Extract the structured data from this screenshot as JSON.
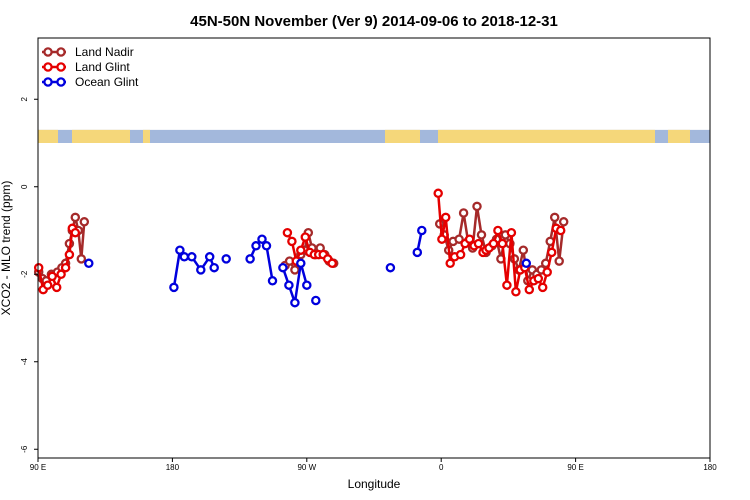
{
  "chart_data": {
    "type": "line",
    "title": "45N-50N November (Ver 9)   2014-09-06 to 2018-12-31",
    "xlabel": "Longitude",
    "ylabel": "XCO2 - MLO trend (ppm)",
    "xlim": [
      90,
      450
    ],
    "ylim": [
      -6.2,
      3.4
    ],
    "x_ticks": [
      {
        "value": 90,
        "label": "90 E"
      },
      {
        "value": 180,
        "label": "180"
      },
      {
        "value": 270,
        "label": "90 W"
      },
      {
        "value": 360,
        "label": "0"
      },
      {
        "value": 450,
        "label": "90 E"
      },
      {
        "value": 540,
        "label": "180"
      }
    ],
    "y_ticks": [
      {
        "value": 2,
        "label": "2"
      },
      {
        "value": 0,
        "label": "0"
      },
      {
        "value": -2,
        "label": "-2"
      },
      {
        "value": -4,
        "label": "-4"
      },
      {
        "value": -6,
        "label": "-6"
      }
    ],
    "legend_position": "top-left",
    "map_strip": {
      "ocean_color": "#a3b8dc",
      "land_color": "#f5d77a",
      "y_top": 1.3,
      "y_bottom": 1.0
    },
    "series": [
      {
        "name": "Land Nadir",
        "color": "#a52a2a",
        "segments": [
          [
            [
              90.5,
              -1.95
            ],
            [
              93,
              -2.1
            ],
            [
              95.5,
              -2.15
            ],
            [
              99,
              -2.0
            ],
            [
              103,
              -1.95
            ],
            [
              106,
              -1.85
            ],
            [
              108.5,
              -1.75
            ],
            [
              111,
              -1.3
            ],
            [
              113,
              -1.0
            ],
            [
              115,
              -0.7
            ],
            [
              117,
              -1.0
            ],
            [
              119,
              -1.65
            ],
            [
              121,
              -0.8
            ]
          ],
          [
            [
              255.5,
              -1.8
            ],
            [
              258.5,
              -1.7
            ],
            [
              262,
              -1.9
            ],
            [
              266,
              -1.55
            ],
            [
              268.5,
              -1.45
            ],
            [
              271,
              -1.05
            ],
            [
              273.5,
              -1.4
            ],
            [
              276,
              -1.55
            ],
            [
              279,
              -1.4
            ],
            [
              282,
              -1.55
            ],
            [
              285,
              -1.7
            ],
            [
              288,
              -1.75
            ]
          ],
          [
            [
              359,
              -0.85
            ],
            [
              362,
              -1.1
            ],
            [
              365,
              -1.45
            ],
            [
              368,
              -1.25
            ],
            [
              372,
              -1.2
            ],
            [
              375,
              -0.6
            ],
            [
              378,
              -1.25
            ],
            [
              381,
              -1.4
            ],
            [
              384,
              -0.45
            ],
            [
              387,
              -1.1
            ],
            [
              390,
              -1.5
            ]
          ],
          [
            [
              394,
              -1.35
            ],
            [
              397,
              -1.2
            ],
            [
              400,
              -1.65
            ],
            [
              403,
              -1.1
            ],
            [
              406,
              -1.3
            ],
            [
              409,
              -1.65
            ],
            [
              412,
              -1.9
            ],
            [
              415,
              -1.45
            ],
            [
              418,
              -2.15
            ],
            [
              421,
              -1.9
            ],
            [
              424,
              -2.0
            ],
            [
              427,
              -1.9
            ],
            [
              430,
              -1.75
            ],
            [
              433,
              -1.25
            ],
            [
              436,
              -0.7
            ],
            [
              439,
              -1.7
            ],
            [
              442,
              -0.8
            ]
          ]
        ]
      },
      {
        "name": "Land Glint",
        "color": "#e50000",
        "segments": [
          [
            [
              90.5,
              -1.85
            ],
            [
              93.5,
              -2.35
            ],
            [
              96.5,
              -2.25
            ],
            [
              99.5,
              -2.05
            ],
            [
              102.5,
              -2.3
            ],
            [
              105.5,
              -2.0
            ],
            [
              108.5,
              -1.85
            ],
            [
              111,
              -1.55
            ],
            [
              113,
              -0.95
            ],
            [
              115,
              -1.05
            ]
          ],
          [
            [
              257,
              -1.05
            ],
            [
              260,
              -1.25
            ],
            [
              263,
              -1.7
            ],
            [
              266,
              -1.45
            ],
            [
              269,
              -1.15
            ],
            [
              272,
              -1.5
            ],
            [
              275,
              -1.55
            ],
            [
              278,
              -1.55
            ],
            [
              281,
              -1.55
            ],
            [
              284,
              -1.65
            ],
            [
              287,
              -1.75
            ]
          ],
          [
            [
              358,
              -0.15
            ],
            [
              360.5,
              -1.2
            ],
            [
              363,
              -0.7
            ],
            [
              366,
              -1.75
            ],
            [
              369,
              -1.6
            ],
            [
              373,
              -1.55
            ],
            [
              376,
              -1.3
            ],
            [
              379,
              -1.2
            ],
            [
              382,
              -1.35
            ],
            [
              385,
              -1.3
            ],
            [
              388,
              -1.5
            ],
            [
              390,
              -1.45
            ]
          ],
          [
            [
              392,
              -1.4
            ],
            [
              395,
              -1.3
            ],
            [
              398,
              -1.0
            ],
            [
              401,
              -1.3
            ],
            [
              404,
              -2.25
            ],
            [
              407,
              -1.05
            ],
            [
              410,
              -2.4
            ],
            [
              413,
              -1.9
            ],
            [
              416,
              -1.85
            ],
            [
              419,
              -2.35
            ],
            [
              422,
              -2.15
            ],
            [
              425,
              -2.1
            ],
            [
              428,
              -2.3
            ],
            [
              431,
              -1.95
            ],
            [
              434,
              -1.5
            ],
            [
              437,
              -0.95
            ],
            [
              440,
              -1.0
            ]
          ]
        ]
      },
      {
        "name": "Ocean Glint",
        "color": "#0000dd",
        "segments": [
          [
            [
              124,
              -1.75
            ]
          ],
          [
            [
              181,
              -2.3
            ],
            [
              185,
              -1.45
            ],
            [
              188,
              -1.6
            ],
            [
              193,
              -1.6
            ],
            [
              199,
              -1.9
            ],
            [
              205,
              -1.6
            ],
            [
              208,
              -1.85
            ]
          ],
          [
            [
              216,
              -1.65
            ]
          ],
          [
            [
              232,
              -1.65
            ],
            [
              236,
              -1.35
            ],
            [
              240,
              -1.2
            ],
            [
              243,
              -1.35
            ],
            [
              247,
              -2.15
            ]
          ],
          [
            [
              254,
              -1.85
            ],
            [
              258,
              -2.25
            ],
            [
              262,
              -2.65
            ],
            [
              266,
              -1.75
            ],
            [
              270,
              -2.25
            ]
          ],
          [
            [
              276,
              -2.6
            ]
          ],
          [
            [
              326,
              -1.85
            ]
          ],
          [
            [
              344,
              -1.5
            ],
            [
              347,
              -1.0
            ]
          ],
          [
            [
              417,
              -1.75
            ]
          ]
        ]
      }
    ]
  }
}
